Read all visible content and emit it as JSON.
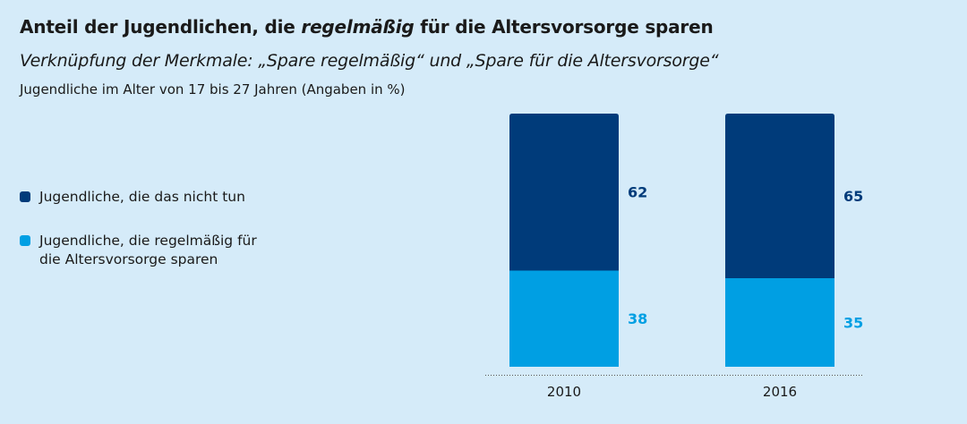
{
  "title": {
    "prefix": "Anteil der Jugendlichen, die ",
    "emphasis": "regelmäßig",
    "suffix": " für die Altersvorsorge sparen"
  },
  "subtitle": "Verknüpfung der Merkmale: „Spare regelmäßig“ und „Spare für die Altersvorsorge“",
  "caption": "Jugendliche im Alter von 17 bis 27 Jahren (Angaben in %)",
  "colors": {
    "dark": "#003b7a",
    "light": "#009fe3",
    "axis": "#555555"
  },
  "chart_data": {
    "type": "bar",
    "stacked": true,
    "categories": [
      "2010",
      "2016"
    ],
    "series": [
      {
        "name": "Jugendliche, die regelmäßig für die Altersvorsorge sparen",
        "values": [
          38,
          35
        ],
        "color": "#009fe3"
      },
      {
        "name": "Jugendliche, die das nicht tun",
        "values": [
          62,
          65
        ],
        "color": "#003b7a"
      }
    ],
    "ylim": [
      0,
      100
    ],
    "legend": [
      {
        "label": "Jugendliche, die das nicht tun",
        "color": "#003b7a"
      },
      {
        "label": "Jugendliche, die regelmäßig für die Altersvorsorge sparen",
        "color": "#009fe3"
      }
    ],
    "legend_position": "left",
    "grid": false
  }
}
